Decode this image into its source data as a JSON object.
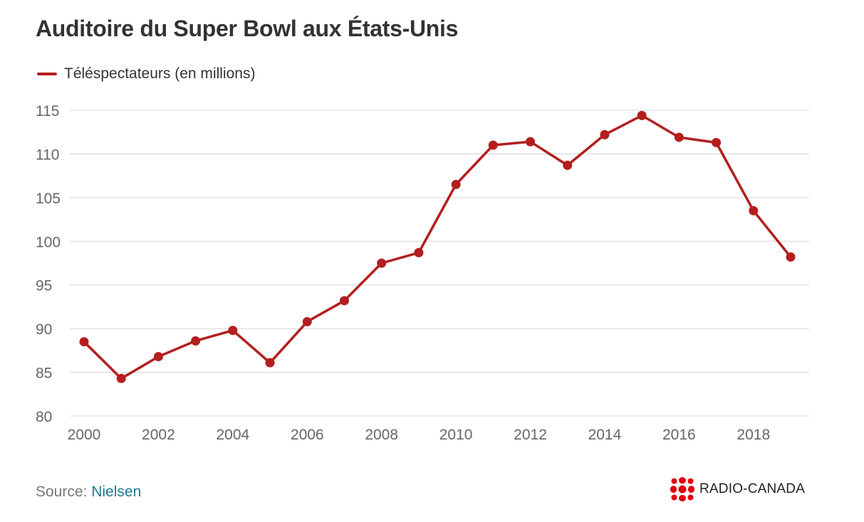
{
  "chart_data": {
    "type": "line",
    "title": "Auditoire du Super Bowl aux États-Unis",
    "x": [
      2000,
      2001,
      2002,
      2003,
      2004,
      2005,
      2006,
      2007,
      2008,
      2009,
      2010,
      2011,
      2012,
      2013,
      2014,
      2015,
      2016,
      2017,
      2018,
      2019
    ],
    "series": [
      {
        "name": "Téléspectateurs (en millions)",
        "color": "#b41e1e",
        "values": [
          88.5,
          84.3,
          86.8,
          88.6,
          89.8,
          86.1,
          90.8,
          93.2,
          97.5,
          98.7,
          106.5,
          111.0,
          111.4,
          108.7,
          112.2,
          114.4,
          111.9,
          111.3,
          103.5,
          98.2
        ]
      }
    ],
    "xticks": [
      2000,
      2002,
      2004,
      2006,
      2008,
      2010,
      2012,
      2014,
      2016,
      2018
    ],
    "yticks": [
      80,
      85,
      90,
      95,
      100,
      105,
      110,
      115
    ],
    "xlim": [
      2000,
      2019
    ],
    "ylim": [
      80,
      115
    ],
    "xlabel": "",
    "ylabel": "",
    "grid": true,
    "legend_position": "top-left"
  },
  "footer": {
    "source_label": "Source:",
    "source_name": "Nielsen"
  },
  "brand": {
    "name": "RADIO-CANADA",
    "color": "#e3000f"
  },
  "colors": {
    "line": "#b41e1e",
    "grid": "#dddddd",
    "tick_text": "#666666",
    "title": "#333333"
  }
}
